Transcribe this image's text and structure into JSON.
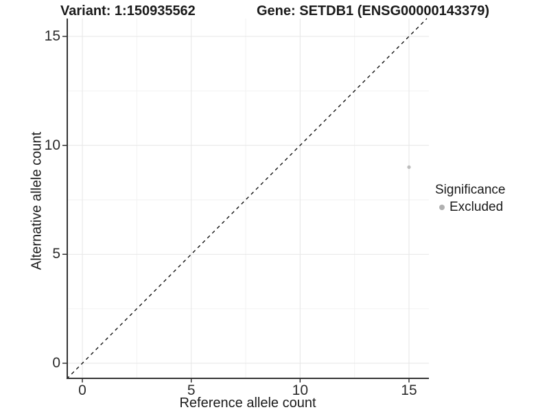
{
  "header": {
    "title_left": "Variant: 1:150935562",
    "title_right": "Gene: SETDB1 (ENSG00000143379)"
  },
  "chart_data": {
    "type": "scatter",
    "title": "Variant: 1:150935562   Gene: SETDB1 (ENSG00000143379)",
    "xlabel": "Reference allele count",
    "ylabel": "Alternative allele count",
    "x_ticks": [
      0,
      5,
      10,
      15
    ],
    "y_ticks": [
      0,
      5,
      10,
      15
    ],
    "x_minor_ticks": [
      2.5,
      7.5,
      12.5
    ],
    "y_minor_ticks": [
      2.5,
      7.5,
      12.5
    ],
    "xlim": [
      -0.72,
      15.92
    ],
    "ylim": [
      -0.72,
      15.82
    ],
    "grid": "major+minor",
    "reference_line": {
      "type": "abline",
      "slope": 1,
      "intercept": 0,
      "linetype": "dashed",
      "color": "#000000"
    },
    "series": [
      {
        "name": "Excluded",
        "color": "#bdbdbd",
        "points": [
          {
            "x": 15,
            "y": 9
          }
        ]
      }
    ],
    "legend": {
      "title": "Significance",
      "position": "right",
      "items": [
        {
          "label": "Excluded",
          "color": "#b0b0b0"
        }
      ]
    },
    "colors": {
      "grid_major": "#e6e6e6",
      "grid_minor": "#f2f2f2",
      "axis_line": "#333333",
      "tick_mark": "#222222"
    }
  }
}
